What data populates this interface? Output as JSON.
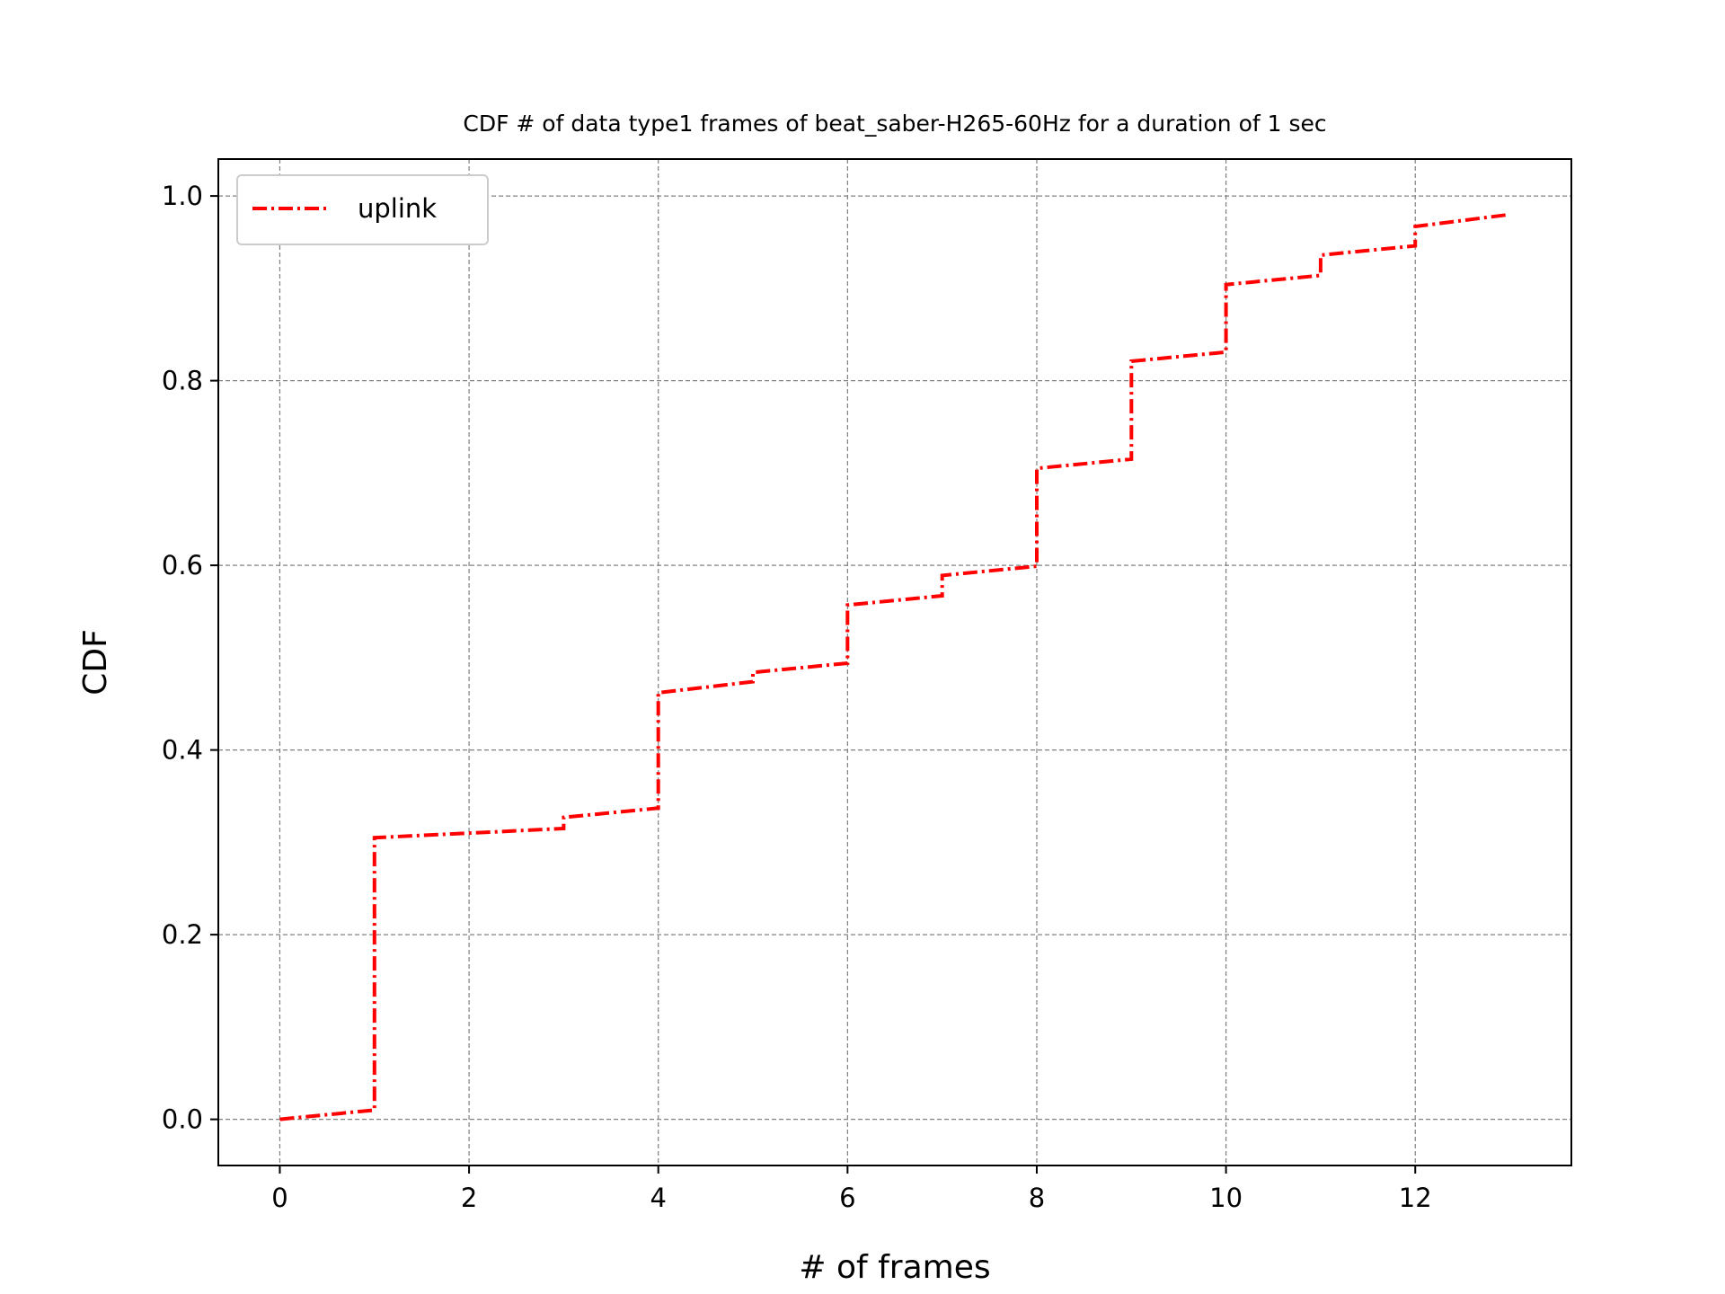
{
  "chart_data": {
    "type": "line",
    "title": "CDF # of data type1 frames of beat_saber-H265-60Hz for a duration of 1 sec",
    "xlabel": "# of frames",
    "ylabel": "CDF",
    "xlim": [
      -0.65,
      13.65
    ],
    "ylim": [
      -0.05,
      1.04
    ],
    "xticks": [
      0,
      2,
      4,
      6,
      8,
      10,
      12
    ],
    "yticks": [
      0.0,
      0.2,
      0.4,
      0.6,
      0.8,
      1.0
    ],
    "xtick_labels": [
      "0",
      "2",
      "4",
      "6",
      "8",
      "10",
      "12"
    ],
    "ytick_labels": [
      "0.0",
      "0.2",
      "0.4",
      "0.6",
      "0.8",
      "1.0"
    ],
    "grid": true,
    "legend_position": "top-left",
    "series": [
      {
        "name": "uplink",
        "color": "#ff0000",
        "line_style": "dash-dot",
        "x": [
          0,
          1,
          1,
          3,
          3,
          4,
          4,
          5,
          5,
          6,
          6,
          7,
          7,
          8,
          8,
          9,
          9,
          10,
          10,
          11,
          11,
          12,
          12,
          13
        ],
        "y": [
          0.0,
          0.01,
          0.305,
          0.315,
          0.327,
          0.337,
          0.462,
          0.474,
          0.484,
          0.494,
          0.557,
          0.567,
          0.589,
          0.599,
          0.705,
          0.715,
          0.821,
          0.831,
          0.904,
          0.914,
          0.936,
          0.946,
          0.967,
          0.98
        ]
      }
    ]
  }
}
